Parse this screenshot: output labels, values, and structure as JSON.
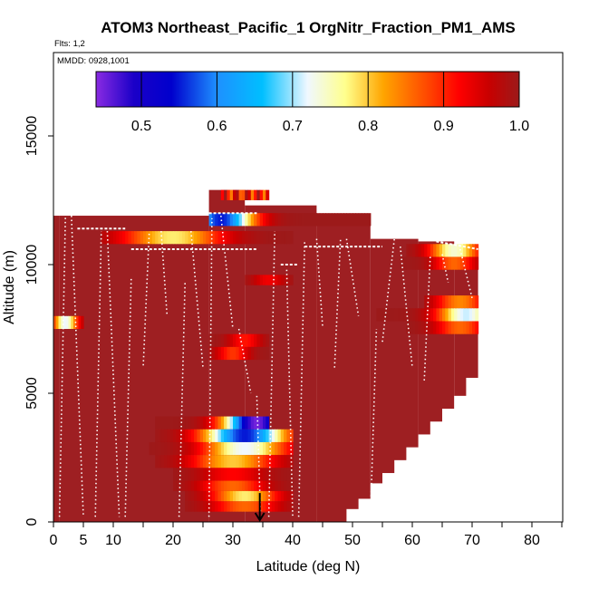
{
  "chart_data": {
    "type": "heatmap",
    "title": "ATOM3 Northeast_Pacific_1 OrgNitr_Fraction_PM1_AMS",
    "flights_label": "Flts: 1,2",
    "date_label": "MMDD: 0928,1001",
    "xlabel": "Latitude (deg N)",
    "ylabel": "Altitude (m)",
    "xlim": [
      0,
      85
    ],
    "ylim": [
      0,
      18000
    ],
    "x_ticks": [
      0,
      5,
      10,
      20,
      30,
      40,
      50,
      60,
      70,
      80
    ],
    "x_minor_ticks": [
      15,
      25,
      35,
      45,
      55,
      65,
      75,
      85
    ],
    "y_ticks": [
      0,
      5000,
      10000,
      15000
    ],
    "colorbar": {
      "range": [
        0.44,
        1.0
      ],
      "ticks": [
        "0.5",
        "0.6",
        "0.7",
        "0.8",
        "0.9",
        "1.0"
      ],
      "tick_values": [
        0.5,
        0.6,
        0.7,
        0.8,
        0.9,
        1.0
      ],
      "stops": [
        {
          "v": 0.44,
          "c": "#8a2be2"
        },
        {
          "v": 0.49,
          "c": "#1a00c8"
        },
        {
          "v": 0.54,
          "c": "#0000cd"
        },
        {
          "v": 0.6,
          "c": "#1e90ff"
        },
        {
          "v": 0.66,
          "c": "#00bfff"
        },
        {
          "v": 0.72,
          "c": "#f0f8ff"
        },
        {
          "v": 0.77,
          "c": "#ffff8c"
        },
        {
          "v": 0.82,
          "c": "#ffa500"
        },
        {
          "v": 0.88,
          "c": "#ff4500"
        },
        {
          "v": 0.92,
          "c": "#ff0000"
        },
        {
          "v": 0.96,
          "c": "#c80000"
        },
        {
          "v": 1.0,
          "c": "#9c1a1a"
        }
      ]
    },
    "background_value": 1.0,
    "background_color": "#9e1f22",
    "coverage_columns": [
      {
        "lat0": 0,
        "lat1": 1,
        "alt_top": 11900
      },
      {
        "lat0": 1,
        "lat1": 26,
        "alt_top": 11900
      },
      {
        "lat0": 26,
        "lat1": 32,
        "alt_top": 12900
      },
      {
        "lat0": 32,
        "lat1": 44,
        "alt_top": 12300
      },
      {
        "lat0": 44,
        "lat1": 53,
        "alt_top": 11800
      },
      {
        "lat0": 53,
        "lat1": 61,
        "alt_top": 11000
      },
      {
        "lat0": 61,
        "lat1": 67,
        "alt_top": 10900
      },
      {
        "lat0": 67,
        "lat1": 71,
        "alt_top": 10700
      }
    ],
    "lower_right_steps": [
      {
        "lat0": 49,
        "lat1": 51,
        "alt_bottom": 500
      },
      {
        "lat0": 51,
        "lat1": 53,
        "alt_bottom": 900
      },
      {
        "lat0": 53,
        "lat1": 55,
        "alt_bottom": 1500
      },
      {
        "lat0": 55,
        "lat1": 57,
        "alt_bottom": 1900
      },
      {
        "lat0": 57,
        "lat1": 59,
        "alt_bottom": 2400
      },
      {
        "lat0": 59,
        "lat1": 61,
        "alt_bottom": 2900
      },
      {
        "lat0": 61,
        "lat1": 63,
        "alt_bottom": 3400
      },
      {
        "lat0": 63,
        "lat1": 65,
        "alt_bottom": 3900
      },
      {
        "lat0": 65,
        "lat1": 67,
        "alt_bottom": 4400
      },
      {
        "lat0": 67,
        "lat1": 69,
        "alt_bottom": 4900
      },
      {
        "lat0": 69,
        "lat1": 71,
        "alt_bottom": 5600
      }
    ],
    "bands": [
      {
        "lat0": 28,
        "lat1": 36,
        "alt0": 12500,
        "alt1": 12900,
        "min": 0.84,
        "shape": "flat"
      },
      {
        "lat0": 26,
        "lat1": 53,
        "alt0": 11500,
        "alt1": 12000,
        "min": 0.55,
        "center": 28,
        "width": 8
      },
      {
        "lat0": 8,
        "lat1": 40,
        "alt0": 10800,
        "alt1": 11300,
        "min": 0.78,
        "center": 20,
        "width": 12
      },
      {
        "lat0": 59,
        "lat1": 71,
        "alt0": 10300,
        "alt1": 10800,
        "min": 0.74,
        "center": 67,
        "width": 6
      },
      {
        "lat0": 58,
        "lat1": 71,
        "alt0": 9800,
        "alt1": 10300,
        "min": 0.86,
        "center": 67,
        "width": 5
      },
      {
        "lat0": 32,
        "lat1": 40,
        "alt0": 9200,
        "alt1": 9600,
        "min": 0.93,
        "center": 36,
        "width": 4
      },
      {
        "lat0": 62,
        "lat1": 71,
        "alt0": 8300,
        "alt1": 8800,
        "min": 0.84,
        "center": 68,
        "width": 6
      },
      {
        "lat0": 54,
        "lat1": 71,
        "alt0": 7800,
        "alt1": 8300,
        "min": 0.71,
        "center": 69,
        "width": 7
      },
      {
        "lat0": 59,
        "lat1": 71,
        "alt0": 7300,
        "alt1": 7800,
        "min": 0.86,
        "center": 68,
        "width": 6
      },
      {
        "lat0": 0,
        "lat1": 5,
        "alt0": 7500,
        "alt1": 8000,
        "min": 0.72,
        "center": 2,
        "width": 3
      },
      {
        "lat0": 26,
        "lat1": 36,
        "alt0": 6800,
        "alt1": 7300,
        "min": 0.91,
        "center": 32,
        "width": 4
      },
      {
        "lat0": 26,
        "lat1": 36,
        "alt0": 6300,
        "alt1": 6800,
        "min": 0.89,
        "center": 30,
        "width": 4
      },
      {
        "lat0": 17,
        "lat1": 36,
        "alt0": 3600,
        "alt1": 4100,
        "min": 0.45,
        "center": 34,
        "width": 8
      },
      {
        "lat0": 17,
        "lat1": 40,
        "alt0": 3100,
        "alt1": 3600,
        "min": 0.55,
        "center": 32,
        "width": 10
      },
      {
        "lat0": 16,
        "lat1": 40,
        "alt0": 2600,
        "alt1": 3100,
        "min": 0.72,
        "center": 32,
        "width": 10
      },
      {
        "lat0": 17,
        "lat1": 40,
        "alt0": 2100,
        "alt1": 2600,
        "min": 0.8,
        "center": 30,
        "width": 10
      },
      {
        "lat0": 20,
        "lat1": 40,
        "alt0": 1600,
        "alt1": 2100,
        "min": 0.92,
        "center": 30,
        "width": 8
      },
      {
        "lat0": 20,
        "lat1": 40,
        "alt0": 1200,
        "alt1": 1600,
        "min": 0.86,
        "center": 30,
        "width": 8
      },
      {
        "lat0": 22,
        "lat1": 40,
        "alt0": 800,
        "alt1": 1200,
        "min": 0.78,
        "center": 32,
        "width": 8
      },
      {
        "lat0": 22,
        "lat1": 40,
        "alt0": 400,
        "alt1": 800,
        "min": 0.86,
        "center": 32,
        "width": 8
      }
    ],
    "flight_tracks": [
      [
        [
          1,
          200
        ],
        [
          2,
          11900
        ]
      ],
      [
        [
          3,
          11900
        ],
        [
          5,
          200
        ]
      ],
      [
        [
          7,
          200
        ],
        [
          8,
          11300
        ]
      ],
      [
        [
          9,
          11300
        ],
        [
          11,
          200
        ]
      ],
      [
        [
          12,
          200
        ],
        [
          13,
          9500
        ]
      ],
      [
        [
          16,
          11200
        ],
        [
          15,
          6000
        ]
      ],
      [
        [
          18,
          11300
        ],
        [
          19,
          8000
        ]
      ],
      [
        [
          21,
          200
        ],
        [
          22,
          9300
        ]
      ],
      [
        [
          23,
          11300
        ],
        [
          25,
          6000
        ]
      ],
      [
        [
          26,
          200
        ],
        [
          26.5,
          11800
        ]
      ],
      [
        [
          28,
          11900
        ],
        [
          30,
          7500
        ]
      ],
      [
        [
          31,
          7500
        ],
        [
          33,
          5000
        ]
      ],
      [
        [
          34,
          4900
        ],
        [
          34.6,
          400
        ]
      ],
      [
        [
          36,
          200
        ],
        [
          37,
          11300
        ]
      ],
      [
        [
          39,
          9800
        ],
        [
          40,
          200
        ]
      ],
      [
        [
          41,
          200
        ],
        [
          42,
          10900
        ]
      ],
      [
        [
          44,
          11000
        ],
        [
          45,
          7600
        ]
      ],
      [
        [
          47,
          6000
        ],
        [
          48,
          11000
        ]
      ],
      [
        [
          49,
          11000
        ],
        [
          51,
          8000
        ]
      ],
      [
        [
          53,
          200
        ],
        [
          54,
          7500
        ]
      ],
      [
        [
          55,
          7000
        ],
        [
          57,
          11000
        ]
      ],
      [
        [
          58,
          10700
        ],
        [
          60,
          6000
        ]
      ],
      [
        [
          62,
          5500
        ],
        [
          63,
          10300
        ]
      ],
      [
        [
          65,
          10400
        ],
        [
          66,
          9300
        ]
      ],
      [
        [
          68,
          10600
        ],
        [
          70,
          8700
        ]
      ]
    ],
    "horizontal_tracks": [
      [
        [
          4,
          11400
        ],
        [
          12,
          11400
        ]
      ],
      [
        [
          13,
          10600
        ],
        [
          34,
          10600
        ]
      ],
      [
        [
          26,
          12000
        ],
        [
          34,
          12000
        ]
      ],
      [
        [
          42,
          10700
        ],
        [
          55,
          10700
        ]
      ],
      [
        [
          64,
          10900
        ],
        [
          71,
          10600
        ]
      ],
      [
        [
          38,
          10000
        ],
        [
          41,
          10000
        ]
      ]
    ],
    "arrow": {
      "lat": 34.5,
      "alt_top": 700,
      "alt_bottom": 0
    }
  }
}
